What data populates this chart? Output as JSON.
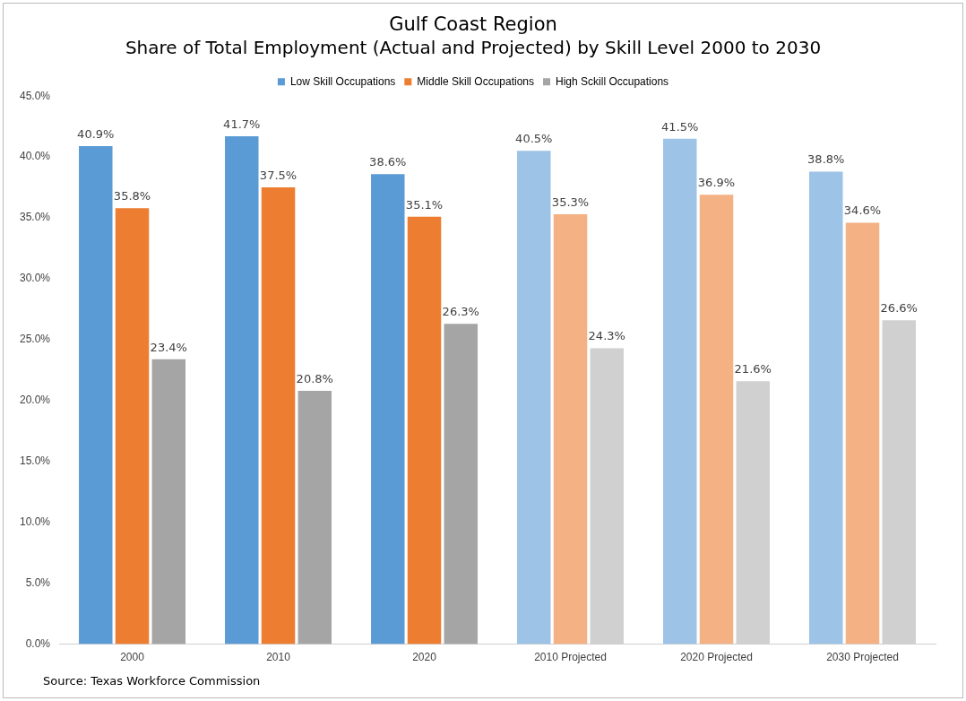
{
  "chart_data": {
    "type": "bar",
    "title": "Gulf Coast Region",
    "subtitle": "Share of Total Employment (Actual and Projected) by Skill Level 2000 to 2030",
    "categories": [
      "2000",
      "2010",
      "2020",
      "2010 Projected",
      "2020 Projected",
      "2030 Projected"
    ],
    "series": [
      {
        "name": "Low Skill Occupations",
        "color": "#5b9bd5",
        "colors": [
          "#5b9bd5",
          "#5b9bd5",
          "#5b9bd5",
          "#9dc3e6",
          "#9dc3e6",
          "#9dc3e6"
        ],
        "values": [
          40.9,
          41.7,
          38.6,
          40.5,
          41.5,
          38.8
        ],
        "value_labels": [
          "40.9%",
          "41.7%",
          "38.6%",
          "40.5%",
          "41.5%",
          "38.8%"
        ]
      },
      {
        "name": "Middle Skill Occupations",
        "color": "#ed7d31",
        "colors": [
          "#ed7d31",
          "#ed7d31",
          "#ed7d31",
          "#f4b183",
          "#f4b183",
          "#f4b183"
        ],
        "values": [
          35.8,
          37.5,
          35.1,
          35.3,
          36.9,
          34.6
        ],
        "value_labels": [
          "35.8%",
          "37.5%",
          "35.1%",
          "35.3%",
          "36.9%",
          "34.6%"
        ]
      },
      {
        "name": "High Sckill Occupations",
        "color": "#a5a5a5",
        "colors": [
          "#a5a5a5",
          "#a5a5a5",
          "#a5a5a5",
          "#d0d0d0",
          "#d0d0d0",
          "#d0d0d0"
        ],
        "values": [
          23.4,
          20.8,
          26.3,
          24.3,
          21.6,
          26.6
        ],
        "value_labels": [
          "23.4%",
          "20.8%",
          "26.3%",
          "24.3%",
          "21.6%",
          "26.6%"
        ]
      }
    ],
    "ylim": [
      0,
      45
    ],
    "yticks": [
      {
        "value": 0,
        "label": "0.0%"
      },
      {
        "value": 5,
        "label": "5.0%"
      },
      {
        "value": 10,
        "label": "10.0%"
      },
      {
        "value": 15,
        "label": "15.0%"
      },
      {
        "value": 20,
        "label": "20.0%"
      },
      {
        "value": 25,
        "label": "25.0%"
      },
      {
        "value": 30,
        "label": "30.0%"
      },
      {
        "value": 35,
        "label": "35.0%"
      },
      {
        "value": 40,
        "label": "40.0%"
      },
      {
        "value": 45,
        "label": "45.0%"
      }
    ],
    "grid": false,
    "legend": "top",
    "annotations": [
      "Source: Texas Workforce Commission"
    ]
  }
}
